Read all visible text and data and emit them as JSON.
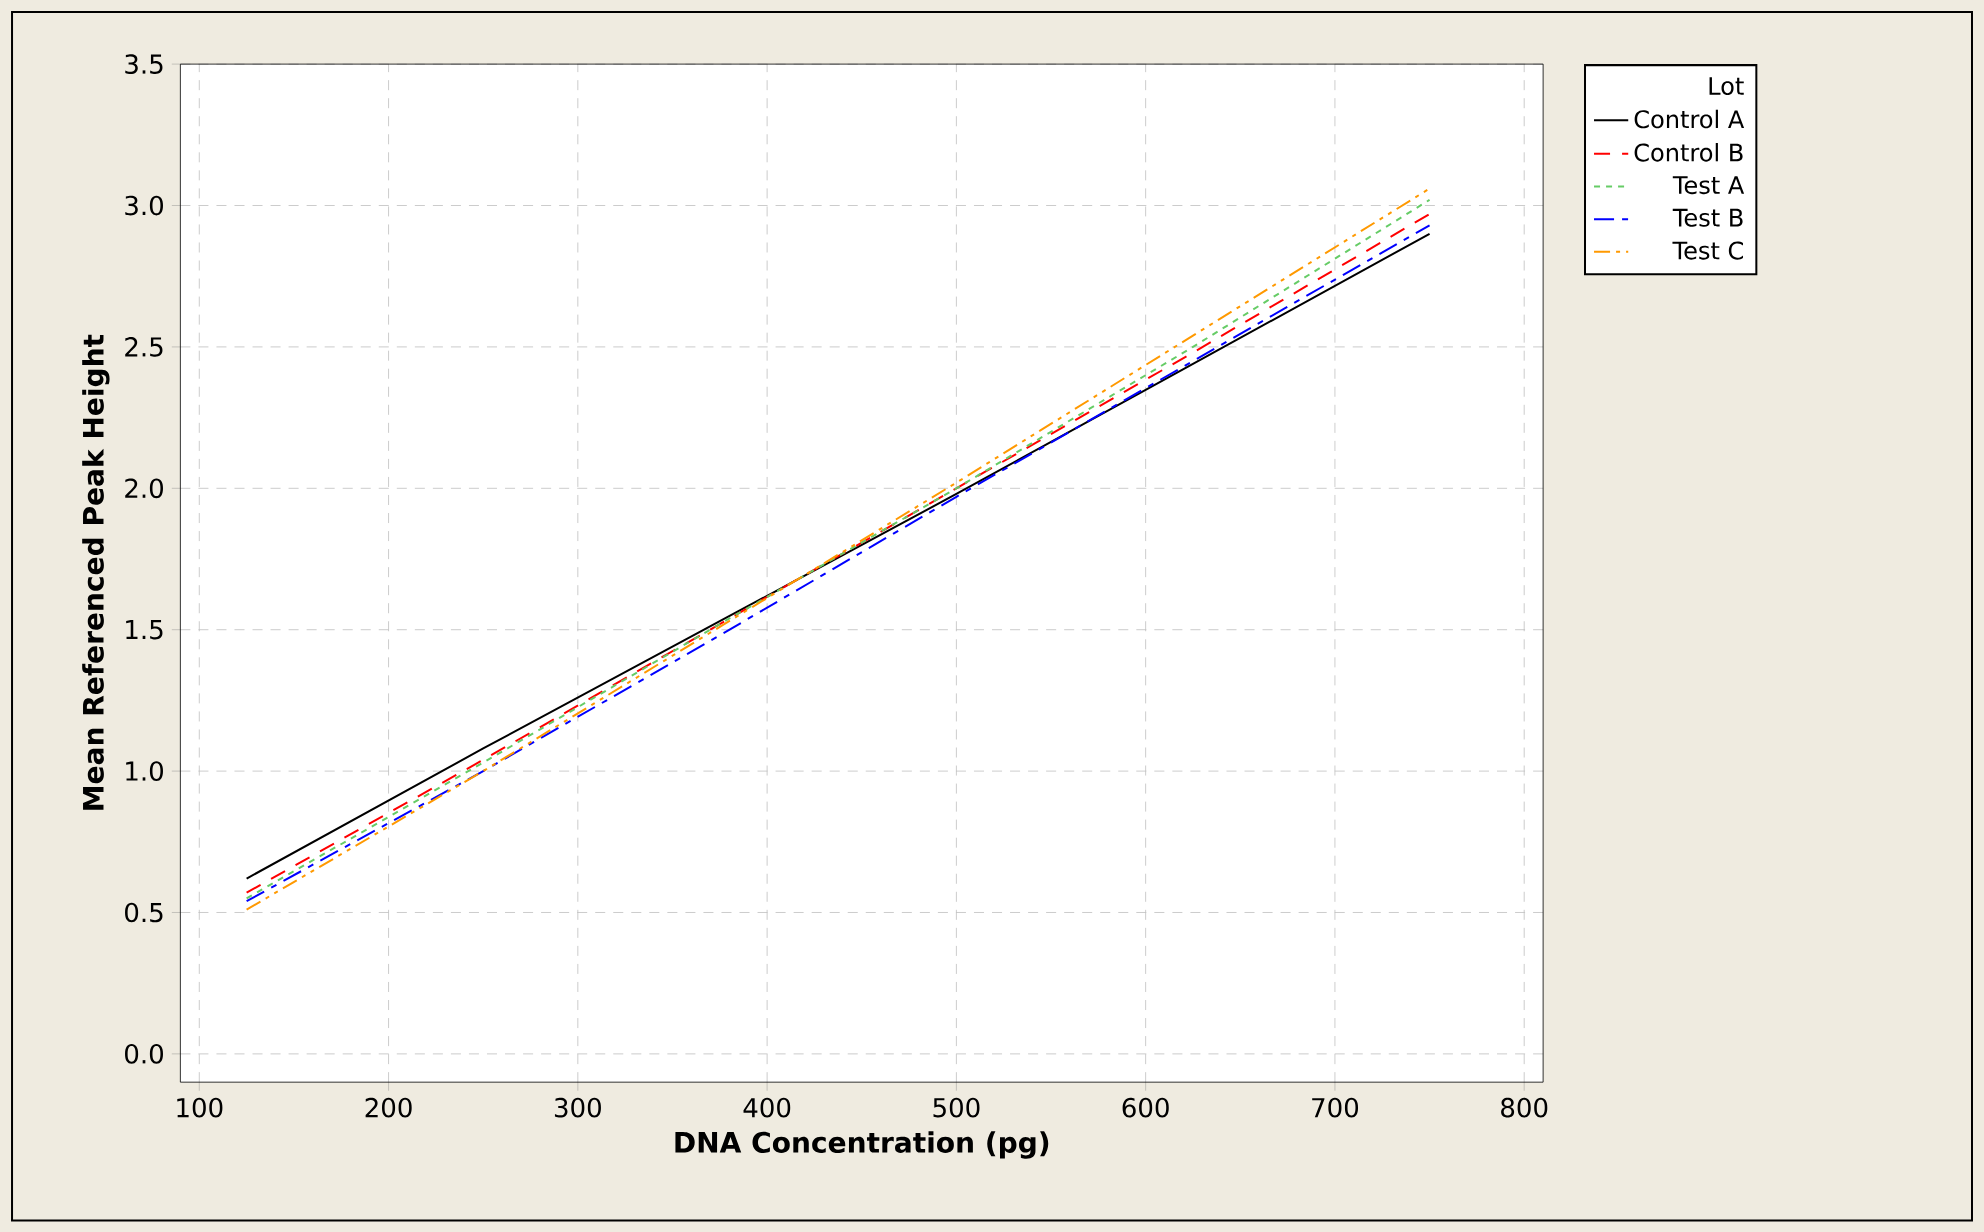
{
  "chart_data": {
    "type": "line",
    "xlabel": "DNA Concentration (pg)",
    "ylabel": "Mean Referenced Peak Height",
    "legend_title": "Lot",
    "legend": "right",
    "grid": true,
    "xlim": [
      90,
      810
    ],
    "ylim": [
      -0.1,
      3.5
    ],
    "xticks": [
      100,
      200,
      300,
      400,
      500,
      600,
      700,
      800
    ],
    "yticks": [
      {
        "value": 0,
        "label": "0.0"
      },
      0.5,
      {
        "value": 1,
        "label": "1.0"
      },
      1.5,
      {
        "value": 2,
        "label": "2.0"
      },
      2.5,
      {
        "value": 3,
        "label": "3.0"
      },
      3.5
    ],
    "x": [
      125,
      250,
      375,
      500,
      625,
      750
    ],
    "series": [
      {
        "name": "Control A",
        "color": "#000000",
        "line_style": "solid",
        "values": [
          0.62,
          1.08,
          1.53,
          1.98,
          2.44,
          2.9
        ]
      },
      {
        "name": "Control B",
        "color": "#ff0000",
        "line_style": "longdash",
        "values": [
          0.57,
          1.04,
          1.52,
          2.0,
          2.48,
          2.97
        ]
      },
      {
        "name": "Test A",
        "color": "#66cc66",
        "line_style": "dashed",
        "values": [
          0.55,
          1.03,
          1.52,
          2.0,
          2.5,
          3.02
        ]
      },
      {
        "name": "Test B",
        "color": "#0000ff",
        "line_style": "dashdot",
        "values": [
          0.54,
          1.0,
          1.48,
          1.97,
          2.45,
          2.93
        ]
      },
      {
        "name": "Test C",
        "color": "#ff9900",
        "line_style": "dashdotdot",
        "values": [
          0.51,
          1.0,
          1.51,
          2.02,
          2.54,
          3.06
        ]
      }
    ]
  }
}
